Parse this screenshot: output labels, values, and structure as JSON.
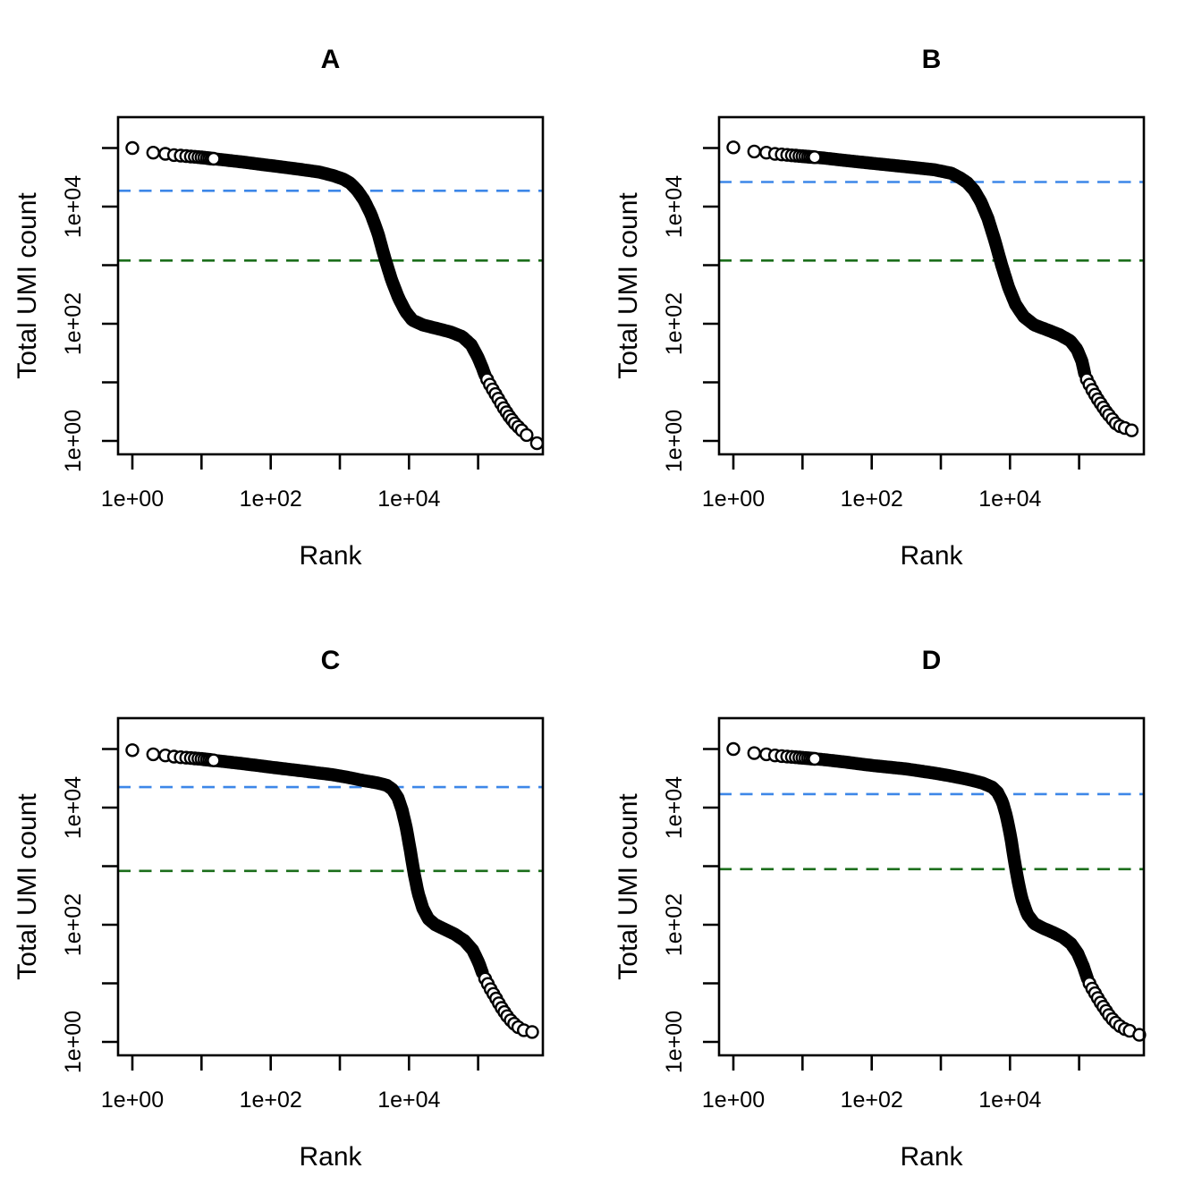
{
  "figure": {
    "kind": "barcode-rank-knee-plots",
    "panel_titles": [
      "A",
      "B",
      "C",
      "D"
    ],
    "x_axis_label": "Rank",
    "y_axis_label": "Total UMI count",
    "x_tick_labels": [
      "1e+00",
      "1e+02",
      "1e+04"
    ],
    "y_tick_labels": [
      "1e+00",
      "1e+02",
      "1e+04"
    ],
    "colors": {
      "points": "#000000",
      "knee_line": "#3D87E8",
      "inflection_line": "#1B6E1B",
      "axis": "#000000",
      "background": "#FFFFFF"
    }
  },
  "chart_data": [
    {
      "type": "scatter",
      "title": "A",
      "xlabel": "Rank",
      "ylabel": "Total UMI count",
      "x_scale": "log10",
      "y_scale": "log10",
      "xlim": [
        1,
        1000000
      ],
      "ylim": [
        1,
        100000
      ],
      "x_ticks": [
        1,
        10,
        100,
        1000,
        10000,
        100000
      ],
      "y_ticks": [
        1,
        10,
        100,
        1000,
        10000,
        100000
      ],
      "grid": false,
      "knee": 18600,
      "inflection": 1200,
      "marker": "open-circle",
      "lead_ranks": [
        1,
        2,
        3,
        4,
        5,
        6,
        7,
        8,
        9,
        10,
        11,
        12,
        13,
        14,
        15
      ],
      "curve_log10": [
        [
          0,
          5.0
        ],
        [
          0.3,
          4.92
        ],
        [
          0.48,
          4.9
        ],
        [
          0.6,
          4.88
        ],
        [
          0.7,
          4.87
        ],
        [
          0.8,
          4.86
        ],
        [
          0.9,
          4.85
        ],
        [
          1.0,
          4.84
        ],
        [
          1.3,
          4.8
        ],
        [
          1.6,
          4.76
        ],
        [
          2.0,
          4.7
        ],
        [
          2.4,
          4.64
        ],
        [
          2.7,
          4.59
        ],
        [
          2.9,
          4.53
        ],
        [
          3.05,
          4.47
        ],
        [
          3.15,
          4.4
        ],
        [
          3.25,
          4.28
        ],
        [
          3.35,
          4.11
        ],
        [
          3.45,
          3.87
        ],
        [
          3.55,
          3.55
        ],
        [
          3.65,
          3.12
        ],
        [
          3.75,
          2.74
        ],
        [
          3.85,
          2.44
        ],
        [
          3.95,
          2.21
        ],
        [
          4.05,
          2.06
        ],
        [
          4.2,
          1.98
        ],
        [
          4.4,
          1.92
        ],
        [
          4.6,
          1.86
        ],
        [
          4.77,
          1.78
        ],
        [
          4.9,
          1.64
        ],
        [
          5.0,
          1.42
        ],
        [
          5.06,
          1.25
        ],
        [
          5.1,
          1.12
        ]
      ],
      "tail_log10": [
        [
          5.13,
          1.05
        ],
        [
          5.17,
          0.96
        ],
        [
          5.21,
          0.88
        ],
        [
          5.25,
          0.8
        ],
        [
          5.29,
          0.72
        ],
        [
          5.33,
          0.64
        ],
        [
          5.37,
          0.56
        ],
        [
          5.41,
          0.49
        ],
        [
          5.45,
          0.42
        ],
        [
          5.49,
          0.36
        ],
        [
          5.53,
          0.3
        ],
        [
          5.58,
          0.24
        ],
        [
          5.63,
          0.18
        ],
        [
          5.7,
          0.1
        ],
        [
          5.85,
          -0.04
        ]
      ]
    },
    {
      "type": "scatter",
      "title": "B",
      "xlabel": "Rank",
      "ylabel": "Total UMI count",
      "x_scale": "log10",
      "y_scale": "log10",
      "xlim": [
        1,
        1000000
      ],
      "ylim": [
        1,
        100000
      ],
      "x_ticks": [
        1,
        10,
        100,
        1000,
        10000,
        100000
      ],
      "y_ticks": [
        1,
        10,
        100,
        1000,
        10000,
        100000
      ],
      "grid": false,
      "knee": 26300,
      "inflection": 1200,
      "marker": "open-circle",
      "lead_ranks": [
        1,
        2,
        3,
        4,
        5,
        6,
        7,
        8,
        9,
        10,
        11,
        12,
        13,
        14,
        15
      ],
      "curve_log10": [
        [
          0,
          5.01
        ],
        [
          0.3,
          4.94
        ],
        [
          0.48,
          4.92
        ],
        [
          0.6,
          4.9
        ],
        [
          0.7,
          4.89
        ],
        [
          0.8,
          4.88
        ],
        [
          0.9,
          4.87
        ],
        [
          1.0,
          4.86
        ],
        [
          1.3,
          4.83
        ],
        [
          1.6,
          4.79
        ],
        [
          2.0,
          4.74
        ],
        [
          2.5,
          4.68
        ],
        [
          2.9,
          4.63
        ],
        [
          3.15,
          4.57
        ],
        [
          3.28,
          4.49
        ],
        [
          3.38,
          4.41
        ],
        [
          3.48,
          4.28
        ],
        [
          3.58,
          4.08
        ],
        [
          3.68,
          3.8
        ],
        [
          3.78,
          3.42
        ],
        [
          3.88,
          3.0
        ],
        [
          3.98,
          2.62
        ],
        [
          4.08,
          2.33
        ],
        [
          4.2,
          2.12
        ],
        [
          4.35,
          1.98
        ],
        [
          4.55,
          1.89
        ],
        [
          4.72,
          1.81
        ],
        [
          4.87,
          1.71
        ],
        [
          4.97,
          1.56
        ],
        [
          5.04,
          1.36
        ],
        [
          5.08,
          1.15
        ]
      ],
      "tail_log10": [
        [
          5.11,
          1.05
        ],
        [
          5.15,
          0.96
        ],
        [
          5.19,
          0.87
        ],
        [
          5.23,
          0.79
        ],
        [
          5.27,
          0.71
        ],
        [
          5.31,
          0.64
        ],
        [
          5.35,
          0.57
        ],
        [
          5.39,
          0.5
        ],
        [
          5.43,
          0.44
        ],
        [
          5.48,
          0.37
        ],
        [
          5.53,
          0.3
        ],
        [
          5.59,
          0.25
        ],
        [
          5.66,
          0.22
        ],
        [
          5.76,
          0.18
        ]
      ]
    },
    {
      "type": "scatter",
      "title": "C",
      "xlabel": "Rank",
      "ylabel": "Total UMI count",
      "x_scale": "log10",
      "y_scale": "log10",
      "xlim": [
        1,
        1000000
      ],
      "ylim": [
        1,
        100000
      ],
      "x_ticks": [
        1,
        10,
        100,
        1000,
        10000,
        100000
      ],
      "y_ticks": [
        1,
        10,
        100,
        1000,
        10000,
        100000
      ],
      "grid": false,
      "knee": 22400,
      "inflection": 830,
      "marker": "open-circle",
      "lead_ranks": [
        1,
        2,
        3,
        4,
        5,
        6,
        7,
        8,
        9,
        10,
        11,
        12,
        13,
        14,
        15
      ],
      "curve_log10": [
        [
          0,
          4.98
        ],
        [
          0.3,
          4.91
        ],
        [
          0.48,
          4.89
        ],
        [
          0.6,
          4.87
        ],
        [
          0.7,
          4.86
        ],
        [
          0.8,
          4.85
        ],
        [
          0.9,
          4.84
        ],
        [
          1.0,
          4.83
        ],
        [
          1.3,
          4.79
        ],
        [
          1.6,
          4.75
        ],
        [
          2.0,
          4.69
        ],
        [
          2.5,
          4.62
        ],
        [
          2.9,
          4.56
        ],
        [
          3.1,
          4.52
        ],
        [
          3.35,
          4.46
        ],
        [
          3.55,
          4.42
        ],
        [
          3.68,
          4.38
        ],
        [
          3.76,
          4.31
        ],
        [
          3.84,
          4.17
        ],
        [
          3.9,
          3.96
        ],
        [
          3.96,
          3.66
        ],
        [
          4.02,
          3.26
        ],
        [
          4.07,
          2.9
        ],
        [
          4.13,
          2.55
        ],
        [
          4.2,
          2.28
        ],
        [
          4.28,
          2.1
        ],
        [
          4.38,
          2.0
        ],
        [
          4.52,
          1.92
        ],
        [
          4.66,
          1.84
        ],
        [
          4.8,
          1.73
        ],
        [
          4.92,
          1.57
        ],
        [
          5.01,
          1.35
        ],
        [
          5.07,
          1.15
        ]
      ],
      "tail_log10": [
        [
          5.1,
          1.08
        ],
        [
          5.14,
          0.99
        ],
        [
          5.18,
          0.9
        ],
        [
          5.22,
          0.82
        ],
        [
          5.26,
          0.74
        ],
        [
          5.3,
          0.66
        ],
        [
          5.34,
          0.58
        ],
        [
          5.38,
          0.51
        ],
        [
          5.42,
          0.44
        ],
        [
          5.47,
          0.37
        ],
        [
          5.52,
          0.31
        ],
        [
          5.58,
          0.25
        ],
        [
          5.66,
          0.2
        ],
        [
          5.78,
          0.17
        ]
      ]
    },
    {
      "type": "scatter",
      "title": "D",
      "xlabel": "Rank",
      "ylabel": "Total UMI count",
      "x_scale": "log10",
      "y_scale": "log10",
      "xlim": [
        1,
        1000000
      ],
      "ylim": [
        1,
        100000
      ],
      "x_ticks": [
        1,
        10,
        100,
        1000,
        10000,
        100000
      ],
      "y_ticks": [
        1,
        10,
        100,
        1000,
        10000,
        100000
      ],
      "grid": false,
      "knee": 17000,
      "inflection": 890,
      "marker": "open-circle",
      "lead_ranks": [
        1,
        2,
        3,
        4,
        5,
        6,
        7,
        8,
        9,
        10,
        11,
        12,
        13,
        14,
        15
      ],
      "curve_log10": [
        [
          0,
          5.0
        ],
        [
          0.3,
          4.93
        ],
        [
          0.48,
          4.91
        ],
        [
          0.6,
          4.89
        ],
        [
          0.7,
          4.88
        ],
        [
          0.8,
          4.87
        ],
        [
          0.9,
          4.86
        ],
        [
          1.0,
          4.85
        ],
        [
          1.3,
          4.82
        ],
        [
          1.6,
          4.78
        ],
        [
          2.0,
          4.72
        ],
        [
          2.5,
          4.66
        ],
        [
          2.9,
          4.59
        ],
        [
          3.1,
          4.55
        ],
        [
          3.4,
          4.48
        ],
        [
          3.6,
          4.42
        ],
        [
          3.74,
          4.35
        ],
        [
          3.82,
          4.26
        ],
        [
          3.89,
          4.1
        ],
        [
          3.95,
          3.85
        ],
        [
          4.01,
          3.5
        ],
        [
          4.06,
          3.12
        ],
        [
          4.11,
          2.78
        ],
        [
          4.17,
          2.45
        ],
        [
          4.25,
          2.18
        ],
        [
          4.35,
          2.02
        ],
        [
          4.48,
          1.94
        ],
        [
          4.62,
          1.87
        ],
        [
          4.76,
          1.79
        ],
        [
          4.88,
          1.68
        ],
        [
          4.98,
          1.51
        ],
        [
          5.06,
          1.29
        ],
        [
          5.12,
          1.08
        ]
      ],
      "tail_log10": [
        [
          5.15,
          1.0
        ],
        [
          5.19,
          0.91
        ],
        [
          5.23,
          0.83
        ],
        [
          5.27,
          0.75
        ],
        [
          5.31,
          0.67
        ],
        [
          5.35,
          0.6
        ],
        [
          5.39,
          0.53
        ],
        [
          5.43,
          0.46
        ],
        [
          5.48,
          0.39
        ],
        [
          5.53,
          0.33
        ],
        [
          5.59,
          0.27
        ],
        [
          5.66,
          0.22
        ],
        [
          5.73,
          0.19
        ],
        [
          5.87,
          0.12
        ]
      ]
    }
  ]
}
